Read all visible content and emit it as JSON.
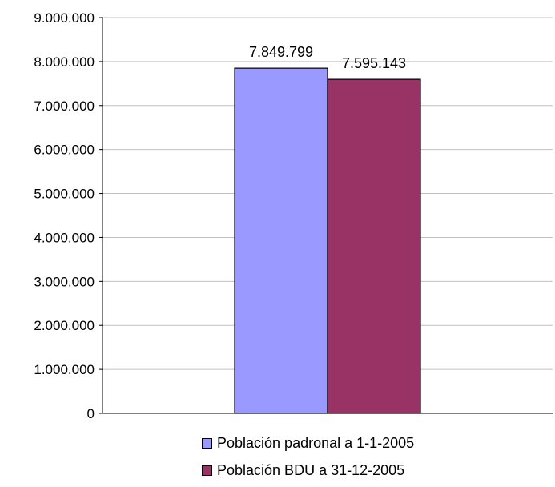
{
  "chart_data": {
    "type": "bar",
    "categories": [
      ""
    ],
    "series": [
      {
        "name": "Población padronal a 1-1-2005",
        "values": [
          7849799
        ],
        "label": "7.849.799",
        "color": "#9999FF"
      },
      {
        "name": "Población BDU a 31-12-2005",
        "values": [
          7595143
        ],
        "label": "7.595.143",
        "color": "#993366"
      }
    ],
    "ylim": [
      0,
      9000000
    ],
    "yticks": [
      {
        "value": 0,
        "label": "0"
      },
      {
        "value": 1000000,
        "label": "1.000.000"
      },
      {
        "value": 2000000,
        "label": "2.000.000"
      },
      {
        "value": 3000000,
        "label": "3.000.000"
      },
      {
        "value": 4000000,
        "label": "4.000.000"
      },
      {
        "value": 5000000,
        "label": "5.000.000"
      },
      {
        "value": 6000000,
        "label": "6.000.000"
      },
      {
        "value": 7000000,
        "label": "7.000.000"
      },
      {
        "value": 8000000,
        "label": "8.000.000"
      },
      {
        "value": 9000000,
        "label": "9.000.000"
      }
    ],
    "grid": true,
    "legend": "bottom"
  }
}
